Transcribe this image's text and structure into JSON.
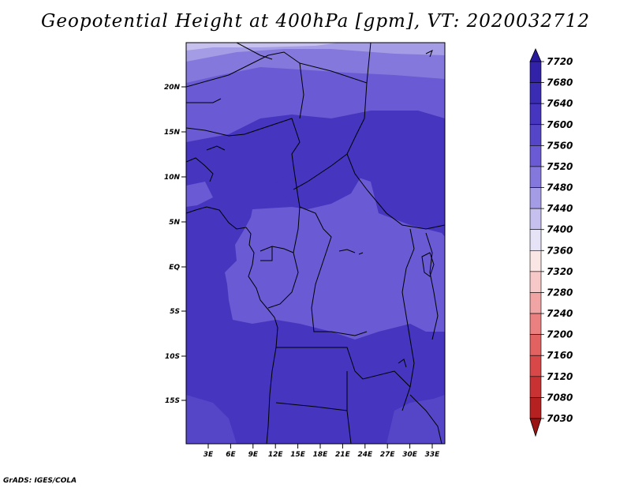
{
  "title": "Geopotential Height at 400hPa [gpm], VT: 2020032712",
  "footer": "GrADS: IGES/COLA",
  "map": {
    "lat_ticks": [
      "20N",
      "15N",
      "10N",
      "5N",
      "EQ",
      "5S",
      "10S",
      "15S"
    ],
    "lon_ticks": [
      "3E",
      "6E",
      "9E",
      "12E",
      "15E",
      "18E",
      "21E",
      "24E",
      "27E",
      "30E",
      "33E"
    ]
  },
  "colorbar": {
    "levels": [
      "7720",
      "7680",
      "7640",
      "7600",
      "7560",
      "7520",
      "7480",
      "7440",
      "7400",
      "7360",
      "7320",
      "7280",
      "7240",
      "7200",
      "7160",
      "7120",
      "7080",
      "7030"
    ],
    "colors": [
      "#2a1a9c",
      "#3222a8",
      "#3a2db4",
      "#4535bf",
      "#5546c8",
      "#6a5ad3",
      "#8578dc",
      "#a59ce6",
      "#c6c0ef",
      "#e6e3f7",
      "#fbe6e6",
      "#f7c8c8",
      "#f1a4a4",
      "#ea8080",
      "#e26262",
      "#d84848",
      "#c83232",
      "#b52020",
      "#9a1414"
    ]
  }
}
